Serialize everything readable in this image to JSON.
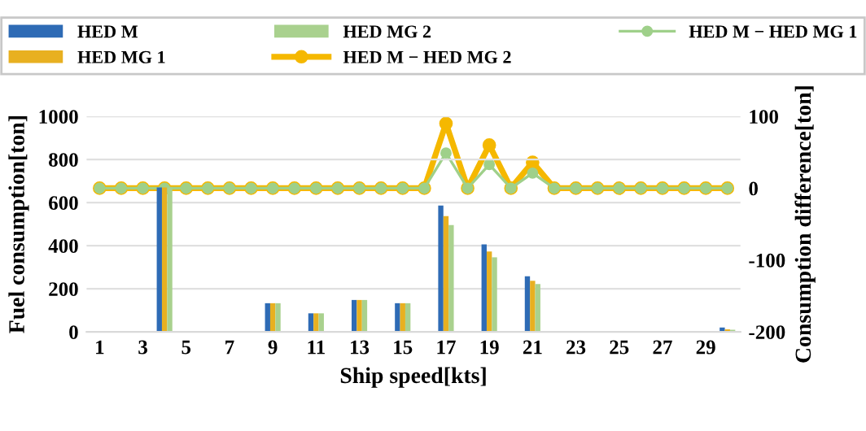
{
  "chart_data": {
    "type": "bar",
    "xlabel": "Ship speed[kts]",
    "ylabel": "Fuel consumption[ton]",
    "y2label": "Consumption difference[ton]",
    "categories": [
      "1",
      null,
      "3",
      null,
      "5",
      null,
      "7",
      null,
      "9",
      null,
      "11",
      null,
      "13",
      null,
      "15",
      null,
      "17",
      null,
      "19",
      null,
      "21",
      null,
      "23",
      null,
      "25",
      null,
      "27",
      null,
      "29",
      null
    ],
    "series": [
      {
        "name": "HED M",
        "color": "#2e6bb5",
        "values": [
          null,
          null,
          null,
          670,
          null,
          null,
          null,
          null,
          133,
          null,
          86,
          null,
          148,
          null,
          133,
          null,
          586,
          null,
          406,
          null,
          258,
          null,
          null,
          null,
          null,
          null,
          null,
          null,
          null,
          20
        ]
      },
      {
        "name": "HED MG 1",
        "color": "#e8b020",
        "values": [
          null,
          null,
          null,
          670,
          null,
          null,
          null,
          null,
          133,
          null,
          86,
          null,
          148,
          null,
          133,
          null,
          537,
          null,
          373,
          null,
          237,
          null,
          null,
          null,
          null,
          null,
          null,
          null,
          null,
          12
        ]
      },
      {
        "name": "HED MG 2",
        "color": "#a9d18e",
        "values": [
          null,
          null,
          null,
          670,
          null,
          null,
          null,
          null,
          133,
          null,
          86,
          null,
          148,
          null,
          133,
          null,
          496,
          null,
          346,
          null,
          222,
          null,
          null,
          null,
          null,
          null,
          null,
          null,
          null,
          10
        ]
      },
      {
        "name": "HED M − HED MG 2",
        "type": "line",
        "axis": "y2",
        "color": "#f5b800",
        "values": [
          0,
          0,
          0,
          0,
          0,
          0,
          0,
          0,
          0,
          0,
          0,
          0,
          0,
          0,
          0,
          0,
          90,
          0,
          60,
          0,
          36,
          0,
          0,
          0,
          0,
          0,
          0,
          0,
          0,
          0
        ]
      },
      {
        "name": "HED M − HED MG 1",
        "type": "line",
        "axis": "y2",
        "color": "#9fd08a",
        "values": [
          0,
          0,
          0,
          0,
          0,
          0,
          0,
          0,
          0,
          0,
          0,
          0,
          0,
          0,
          0,
          0,
          49,
          0,
          33,
          0,
          21,
          0,
          0,
          0,
          0,
          0,
          0,
          0,
          0,
          0
        ]
      }
    ],
    "ylim": [
      0,
      1000
    ],
    "yticks": [
      0,
      200,
      400,
      600,
      800,
      1000
    ],
    "y2lim": [
      -200,
      100
    ],
    "y2ticks": [
      -200,
      -100,
      0,
      100
    ],
    "grid": "y",
    "legend": "top",
    "marker": "circle",
    "line_style": "solid"
  }
}
